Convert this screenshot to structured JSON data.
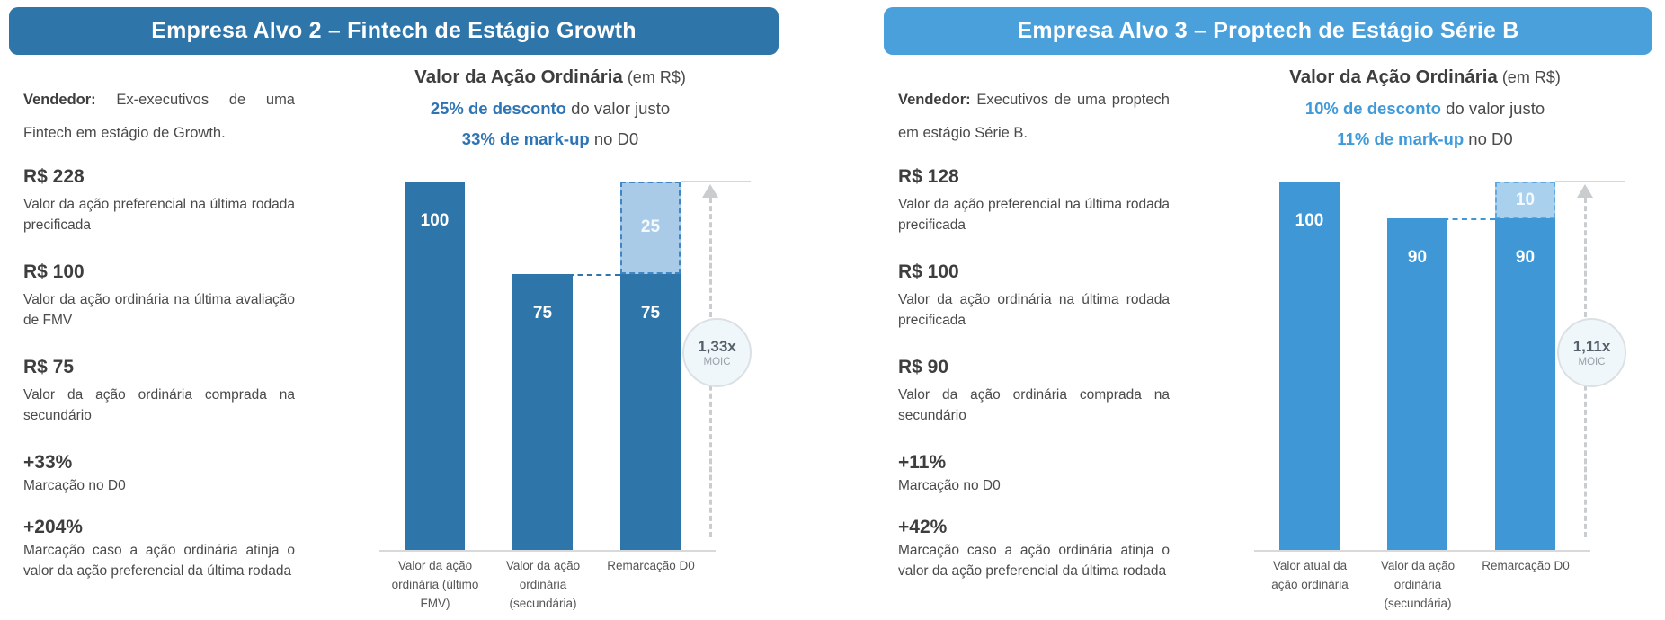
{
  "panels": [
    {
      "header": "Empresa Alvo 2 – Fintech de Estágio Growth",
      "colors": {
        "banner": "#2E75A9",
        "bar": "#2E75A9",
        "accent": "#2E74B5",
        "box-fill": "#A9CBE8",
        "box-border": "#3E86C6"
      },
      "vendor_label": "Vendedor:",
      "vendor_text": " Ex-executivos de uma Fintech em estágio de Growth.",
      "facts": [
        {
          "value": "R$ 228",
          "desc": "Valor da ação preferencial na última rodada precificada"
        },
        {
          "value": "R$ 100",
          "desc": "Valor da ação ordinária na última avaliação de FMV"
        },
        {
          "value": "R$ 75",
          "desc": "Valor da ação ordinária comprada na secundário"
        },
        {
          "value": "+33%",
          "desc": "Marcação no D0"
        },
        {
          "value": "+204%",
          "desc": "Marcação caso a ação ordinária atinja o valor da ação preferencial da última rodada"
        }
      ],
      "chart": {
        "moic_value": "1,33x",
        "moic_label": "MOIC"
      }
    },
    {
      "header": "Empresa Alvo 3 – Proptech de Estágio Série B",
      "colors": {
        "banner": "#4AA0DB",
        "bar": "#3F97D5",
        "accent": "#3E9ADA",
        "box-fill": "#A9D0ED",
        "box-border": "#5FABE1"
      },
      "vendor_label": "Vendedor:",
      "vendor_text": " Executivos de uma proptech em estágio Série B.",
      "facts": [
        {
          "value": "R$ 128",
          "desc": "Valor da ação preferencial na última rodada precificada"
        },
        {
          "value": "R$ 100",
          "desc": "Valor da ação ordinária na última rodada precificada"
        },
        {
          "value": "R$ 90",
          "desc": "Valor da ação ordinária comprada na secundário"
        },
        {
          "value": "+11%",
          "desc": "Marcação no D0"
        },
        {
          "value": "+42%",
          "desc": "Marcação caso a ação ordinária atinja o valor da ação preferencial da última rodada"
        }
      ],
      "chart": {
        "moic_value": "1,11x",
        "moic_label": "MOIC"
      }
    }
  ],
  "chart_data": [
    {
      "type": "bar",
      "title": "Valor da Ação Ordinária",
      "title_suffix": " (em R$)",
      "subtitles": [
        {
          "accent": "25% de desconto",
          "rest": " do valor justo"
        },
        {
          "accent": "33% de mark-up",
          "rest": " no D0"
        }
      ],
      "categories": [
        "Valor da ação ordinária (último FMV)",
        "Valor da ação ordinária (secundária)",
        "Remarcação D0"
      ],
      "series": [
        {
          "name": "Valor da ação ordinária",
          "values": [
            100,
            75,
            75
          ]
        },
        {
          "name": "Remarcação (mark-up) no D0",
          "values": [
            0,
            0,
            25
          ]
        }
      ],
      "ylim": [
        0,
        100
      ],
      "grid": false,
      "legend": false,
      "annotation": "1,33x MOIC"
    },
    {
      "type": "bar",
      "title": "Valor da Ação Ordinária",
      "title_suffix": " (em R$)",
      "subtitles": [
        {
          "accent": "10% de desconto",
          "rest": " do valor justo"
        },
        {
          "accent": "11% de mark-up",
          "rest": " no D0"
        }
      ],
      "categories": [
        "Valor atual da ação ordinária",
        "Valor da ação ordinária (secundária)",
        "Remarcação D0"
      ],
      "series": [
        {
          "name": "Valor da ação ordinária",
          "values": [
            100,
            90,
            90
          ]
        },
        {
          "name": "Remarcação (mark-up) no D0",
          "values": [
            0,
            0,
            10
          ]
        }
      ],
      "ylim": [
        0,
        100
      ],
      "grid": false,
      "legend": false,
      "annotation": "1,11x MOIC"
    }
  ]
}
